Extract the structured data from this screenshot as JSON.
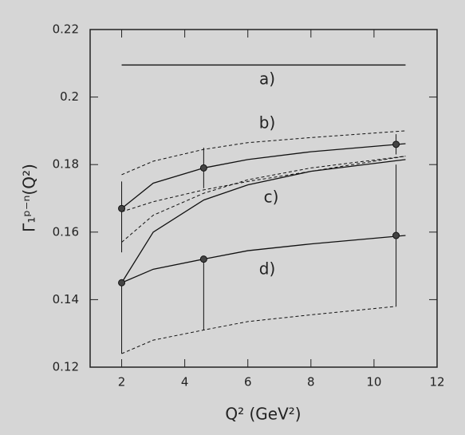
{
  "chart_data": {
    "type": "line",
    "xlabel": "Q² (GeV²)",
    "ylabel": "Γ₁ᵖ⁻ⁿ(Q²)",
    "annotations": [
      "a)",
      "b)",
      "c)",
      "d)"
    ],
    "xlim": [
      1,
      12
    ],
    "xticks": [
      2,
      4,
      6,
      8,
      10,
      12
    ],
    "ylim": [
      0.12,
      0.22
    ],
    "yticks": [
      0.12,
      0.14,
      0.16,
      0.18,
      0.2,
      0.22
    ],
    "color": "#111111",
    "series": [
      {
        "style": "solid",
        "x": [
          2,
          11
        ],
        "values": [
          0.2095,
          0.2095
        ]
      },
      {
        "style": "solid",
        "x": [
          2,
          3,
          4.6,
          6,
          8,
          11
        ],
        "values": [
          0.167,
          0.1745,
          0.179,
          0.1815,
          0.1838,
          0.1862
        ]
      },
      {
        "style": "dashed",
        "x": [
          2,
          3,
          4.6,
          6,
          8,
          11
        ],
        "values": [
          0.177,
          0.181,
          0.1845,
          0.1865,
          0.188,
          0.19
        ]
      },
      {
        "style": "dashed",
        "x": [
          2,
          3,
          4.6,
          6,
          8,
          11
        ],
        "values": [
          0.166,
          0.169,
          0.1725,
          0.175,
          0.178,
          0.1825
        ]
      },
      {
        "style": "solid",
        "x": [
          2,
          3,
          4.6,
          6,
          8,
          11
        ],
        "values": [
          0.145,
          0.16,
          0.1695,
          0.174,
          0.178,
          0.1815
        ]
      },
      {
        "style": "dashed",
        "x": [
          2,
          3,
          4.6,
          6,
          8,
          11
        ],
        "values": [
          0.157,
          0.165,
          0.1715,
          0.1755,
          0.179,
          0.1825
        ]
      },
      {
        "style": "solid",
        "x": [
          2,
          3,
          4.6,
          6,
          8,
          11
        ],
        "values": [
          0.145,
          0.149,
          0.152,
          0.1545,
          0.1565,
          0.159
        ]
      },
      {
        "style": "dashed",
        "x": [
          2,
          3,
          4.6,
          6,
          8,
          10.7
        ],
        "values": [
          0.124,
          0.128,
          0.131,
          0.1335,
          0.1355,
          0.138
        ]
      }
    ],
    "points": {
      "x": [
        2,
        4.6,
        10.7,
        2,
        4.6,
        10.7
      ],
      "values": [
        0.167,
        0.179,
        0.186,
        0.145,
        0.152,
        0.159
      ],
      "low": [
        0.154,
        0.173,
        0.183,
        0.124,
        0.131,
        0.138
      ],
      "high": [
        0.175,
        0.185,
        0.189,
        0.145,
        0.152,
        0.18
      ]
    }
  }
}
